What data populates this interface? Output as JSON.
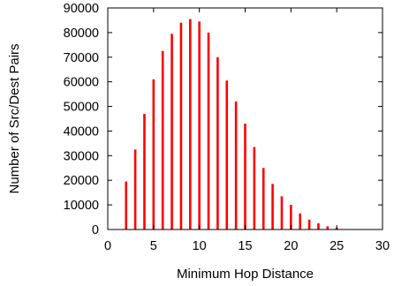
{
  "chart_data": {
    "type": "bar",
    "xlabel": "Minimum Hop Distance",
    "ylabel": "Number of Src/Dest Pairs",
    "xlim": [
      0,
      30
    ],
    "ylim": [
      0,
      90000
    ],
    "xticks": [
      0,
      5,
      10,
      15,
      20,
      25,
      30
    ],
    "yticks": [
      0,
      10000,
      20000,
      30000,
      40000,
      50000,
      60000,
      70000,
      80000,
      90000
    ],
    "grid": false,
    "legend": "none",
    "bar_color": "#ff0000",
    "series": [
      {
        "x": [
          2,
          3,
          4,
          5,
          6,
          7,
          8,
          9,
          10,
          11,
          12,
          13,
          14,
          15,
          16,
          17,
          18,
          19,
          20,
          21,
          22,
          23,
          24,
          25
        ],
        "values": [
          19500,
          32500,
          47000,
          61000,
          72500,
          79500,
          84000,
          85500,
          84500,
          80000,
          70000,
          60500,
          52000,
          43000,
          33500,
          25000,
          18500,
          13500,
          10000,
          6500,
          4000,
          2500,
          1300,
          800
        ]
      }
    ]
  }
}
